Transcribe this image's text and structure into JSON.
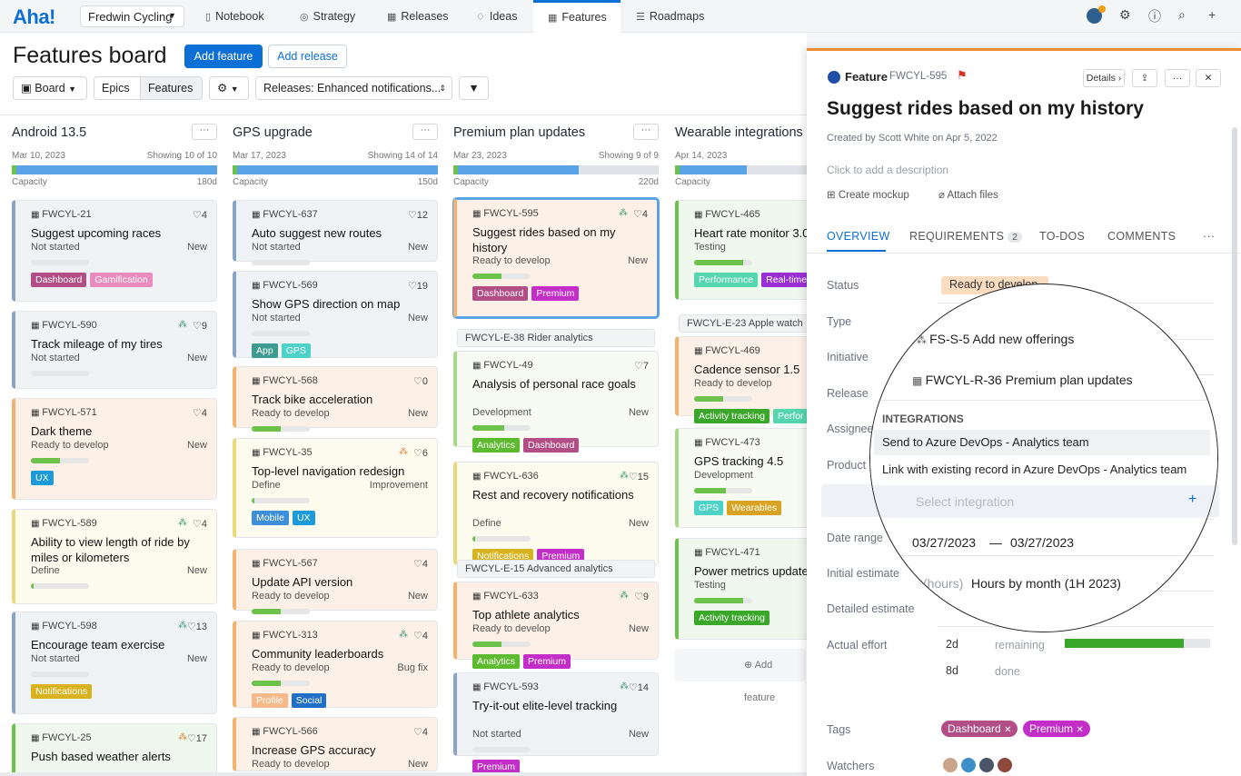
{
  "nav": {
    "logo": "Aha!",
    "workspace": "Fredwin Cycling",
    "items": [
      "Notebook",
      "Strategy",
      "Releases",
      "Ideas",
      "Features",
      "Roadmaps"
    ],
    "active": "Features"
  },
  "board": {
    "title": "Features board",
    "add_feature": "Add feature",
    "add_release": "Add release",
    "board_btn": "Board",
    "epics": "Epics",
    "features": "Features",
    "releases_filter": "Releases: Enhanced notifications...",
    "capacity_label": "Capacity",
    "add_feature_col": "Add feature",
    "columns": [
      {
        "name": "Android 13.5",
        "date": "Mar 10, 2023",
        "showing": "Showing 10 of 10",
        "capacity": "180d",
        "fill": 1.0
      },
      {
        "name": "GPS upgrade",
        "date": "Mar 17, 2023",
        "showing": "Showing 14 of 14",
        "capacity": "150d",
        "fill": 1.0
      },
      {
        "name": "Premium plan updates",
        "date": "Mar 23, 2023",
        "showing": "Showing 9 of 9",
        "capacity": "220d",
        "fill": 0.61
      },
      {
        "name": "Wearable integrations",
        "date": "Apr 14, 2023",
        "capacity": "",
        "fill": 0.35
      }
    ],
    "cards": [
      [
        {
          "key": "FWCYL-21",
          "name": "Suggest upcoming races",
          "status": "Not started",
          "type": "New",
          "count": "4",
          "tags": [
            "Dashboard",
            "Gamification"
          ]
        },
        {
          "key": "FWCYL-590",
          "name": "Track mileage of my tires",
          "status": "Not started",
          "type": "New",
          "count": "9",
          "tags": []
        },
        {
          "key": "FWCYL-571",
          "name": "Dark theme",
          "status": "Ready to develop",
          "type": "New",
          "count": "4",
          "tags": [
            "UX"
          ]
        },
        {
          "key": "FWCYL-589",
          "name": "Ability to view length of ride by miles or kilometers",
          "status": "Define",
          "type": "New",
          "count": "4",
          "tags": []
        },
        {
          "key": "FWCYL-598",
          "name": "Encourage team exercise",
          "status": "Not started",
          "type": "New",
          "count": "13",
          "tags": [
            "Notifications"
          ]
        },
        {
          "key": "FWCYL-25",
          "name": "Push based weather alerts",
          "status": "",
          "type": "",
          "count": "17",
          "tags": []
        }
      ],
      [
        {
          "key": "FWCYL-637",
          "name": "Auto suggest new routes",
          "status": "Not started",
          "type": "New",
          "count": "12",
          "tags": []
        },
        {
          "key": "FWCYL-569",
          "name": "Show GPS direction on map",
          "status": "Not started",
          "type": "New",
          "count": "19",
          "tags": [
            "App",
            "GPS"
          ]
        },
        {
          "key": "FWCYL-568",
          "name": "Track bike acceleration",
          "status": "Ready to develop",
          "type": "New",
          "count": "0",
          "tags": []
        },
        {
          "key": "FWCYL-35",
          "name": "Top-level navigation redesign",
          "status": "Define",
          "type": "Improvement",
          "count": "6",
          "tags": [
            "Mobile",
            "UX"
          ]
        },
        {
          "key": "FWCYL-567",
          "name": "Update API version",
          "status": "Ready to develop",
          "type": "New",
          "count": "4",
          "tags": []
        },
        {
          "key": "FWCYL-313",
          "name": "Community leaderboards",
          "status": "Ready to develop",
          "type": "Bug fix",
          "count": "4",
          "tags": [
            "Profile",
            "Social"
          ]
        },
        {
          "key": "FWCYL-566",
          "name": "Increase GPS accuracy",
          "status": "Ready to develop",
          "type": "New",
          "count": "4",
          "tags": []
        }
      ],
      [
        {
          "key": "FWCYL-595",
          "name": "Suggest rides based on my history",
          "status": "Ready to develop",
          "type": "New",
          "count": "4",
          "tags": [
            "Dashboard",
            "Premium"
          ]
        },
        {
          "key": "FWCYL-49",
          "name": "Analysis of personal race goals",
          "status": "Development",
          "type": "New",
          "count": "7",
          "tags": [
            "Analytics",
            "Dashboard"
          ],
          "group": "FWCYL-E-38 Rider analytics"
        },
        {
          "key": "FWCYL-636",
          "name": "Rest and recovery notifications",
          "status": "Define",
          "type": "New",
          "count": "15",
          "tags": [
            "Notifications",
            "Premium"
          ]
        },
        {
          "key": "FWCYL-633",
          "name": "Top athlete analytics",
          "status": "Ready to develop",
          "type": "New",
          "count": "9",
          "tags": [
            "Analytics",
            "Premium"
          ],
          "group": "FWCYL-E-15 Advanced analytics"
        },
        {
          "key": "FWCYL-593",
          "name": "Try-it-out elite-level tracking",
          "status": "Not started",
          "type": "New",
          "count": "14",
          "tags": [
            "Premium"
          ]
        }
      ],
      [
        {
          "key": "FWCYL-465",
          "name": "Heart rate monitor 3.0",
          "status": "Testing",
          "type": "",
          "count": "",
          "tags": [
            "Performance",
            "Real-time"
          ]
        },
        {
          "key": "FWCYL-469",
          "name": "Cadence sensor 1.5",
          "status": "Ready to develop",
          "type": "",
          "count": "",
          "tags": [
            "Activity tracking",
            "Perfor"
          ],
          "group": "FWCYL-E-23 Apple watch"
        },
        {
          "key": "FWCYL-473",
          "name": "GPS tracking 4.5",
          "status": "Development",
          "type": "",
          "count": "",
          "tags": [
            "GPS",
            "Wearables"
          ]
        },
        {
          "key": "FWCYL-471",
          "name": "Power metrics update",
          "status": "Testing",
          "type": "",
          "count": "",
          "tags": [
            "Activity tracking"
          ]
        }
      ]
    ]
  },
  "tag_colors": {
    "Dashboard": "#b24e85",
    "Gamification": "#e98bbd",
    "UX": "#1c9bd8",
    "Notifications": "#d9b21f",
    "App": "#3d9c8f",
    "GPS": "#4dd2c8",
    "Mobile": "#3d8fd9",
    "Profile": "#f5b98a",
    "Social": "#1f6fc9",
    "Premium": "#c42ec8",
    "Analytics": "#5cba2f",
    "Performance": "#56d6b0",
    "Real-time": "#9b2fd6",
    "Activity tracking": "#3aa62a",
    "Perfor": "#56d6b0",
    "Wearables": "#d8a324"
  },
  "panel": {
    "kind": "Feature",
    "ref": "FWCYL-595",
    "details": "Details",
    "title": "Suggest rides based on my history",
    "created": "Created by Scott White on Apr 5, 2022",
    "description_ph": "Click to add a description",
    "create_mockup": "Create mockup",
    "attach_files": "Attach files",
    "tabs": [
      "OVERVIEW",
      "REQUIREMENTS",
      "TO-DOS",
      "COMMENTS"
    ],
    "req_count": "2",
    "labels": [
      "Status",
      "Type",
      "Initiative",
      "Release",
      "Assignee",
      "Product",
      "Integrations",
      "Date range",
      "Initial estimate",
      "Detailed estimate",
      "Actual effort"
    ],
    "status_value": "Ready to develop",
    "actual_effort": {
      "remaining": "2d",
      "remaining_label": "remaining",
      "done": "8d",
      "done_label": "done",
      "fill": 0.82
    },
    "tags_label": "Tags",
    "tags": [
      "Dashboard",
      "Premium"
    ],
    "watchers_label": "Watchers"
  },
  "magnifier": {
    "initiative": "FS-S-5 Add new offerings",
    "release": "FWCYL-R-36 Premium plan updates",
    "integrations_header": "INTEGRATIONS",
    "option1": "Send to Azure DevOps - Analytics team",
    "option2": "Link with existing record in Azure DevOps - Analytics team",
    "select_ph": "Select integration",
    "date_from": "03/27/2023",
    "date_sep": "—",
    "date_to": "03/27/2023",
    "estimate_unit": "(hours)",
    "estimate_value": "Hours by month (1H 2023)"
  }
}
